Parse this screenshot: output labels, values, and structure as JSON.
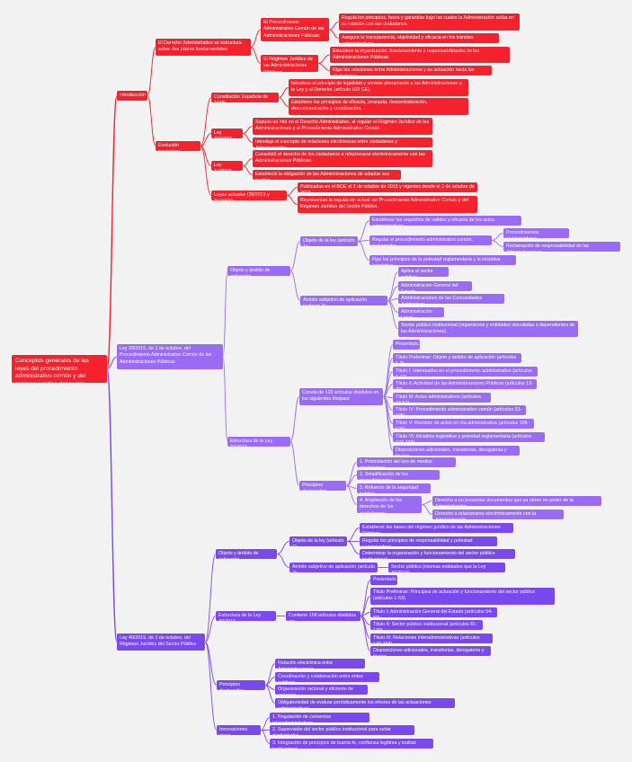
{
  "colors": {
    "root": "#f5222d",
    "branches": [
      "#f5222d",
      "#9a6cf6",
      "#7a48ef"
    ]
  },
  "tree": {
    "text": "Conceptos generales de las leyes del procedimiento administrativo común y del régimen jurídico del sector público",
    "children": [
      {
        "text": "Introducción",
        "children": [
          {
            "text": "El Derecho Administrativo se estructura sobre dos pilares fundamentales:",
            "children": [
              {
                "text": "El Procedimiento Administrativo Común de las Administraciones Públicas:",
                "children": [
                  {
                    "text": "Regula los principios, fases y garantías bajo las cuales la Administración actúa en su relación con los ciudadanos."
                  },
                  {
                    "text": "Asegura la transparencia, objetividad y eficacia en los trámites administrativos."
                  }
                ]
              },
              {
                "text": "El Régimen Jurídico de las Administraciones Públicas:",
                "children": [
                  {
                    "text": "Establece la organización, funcionamiento y responsabilidades de las Administraciones Públicas."
                  },
                  {
                    "text": "Rige las relaciones entre Administraciones y su actuación hacia los ciudadanos."
                  }
                ]
              }
            ]
          },
          {
            "text": "Evolución normativa:",
            "children": [
              {
                "text": "Constitución Española de 1978:",
                "children": [
                  {
                    "text": "Introduce el principio de legalidad y somete plenamente a las Administraciones a la Ley y al Derecho (artículo 103 CE)."
                  },
                  {
                    "text": "Establece los principios de eficacia, jerarquía, descentralización, desconcentración y coordinación."
                  }
                ]
              },
              {
                "text": "Ley 30/1992:",
                "children": [
                  {
                    "text": "Supuso un hito en el Derecho Administrativo, al regular el Régimen Jurídico de las Administraciones y el Procedimiento Administrativo Común."
                  },
                  {
                    "text": "Introdujo el concepto de relaciones electrónicas entre ciudadanos y Administración."
                  }
                ]
              },
              {
                "text": "Ley 11/2007:",
                "children": [
                  {
                    "text": "Consolidó el derecho de los ciudadanos a relacionarse electrónicamente con las Administraciones Públicas."
                  },
                  {
                    "text": "Estableció la obligación de las Administraciones de adaptar sus medios."
                  }
                ]
              },
              {
                "text": "Leyes actuales (39/2015 y 40/2015):",
                "children": [
                  {
                    "text": "Publicadas en el BOE el 2 de octubre de 2015 y vigentes desde el 2 de octubre de 2016."
                  },
                  {
                    "text": "Representan la regulación actual del Procedimiento Administrativo Común y del Régimen Jurídico del Sector Público."
                  }
                ]
              }
            ]
          }
        ]
      },
      {
        "text": "Ley 39/2015, de 1 de octubre, del Procedimiento Administrativo Común de las Administraciones Públicas",
        "children": [
          {
            "text": "Objeto y ámbito de aplicación",
            "children": [
              {
                "text": "Objeto de la ley (artículo 1):",
                "children": [
                  {
                    "text": "Establecer los requisitos de validez y eficacia de los actos administrativos."
                  },
                  {
                    "text": "Regular el procedimiento administrativo común, incluyendo:",
                    "children": [
                      {
                        "text": "Procedimientos sancionadores."
                      },
                      {
                        "text": "Reclamación de responsabilidad de las Administraciones."
                      }
                    ]
                  },
                  {
                    "text": "Fijar los principios de la potestad reglamentaria y la iniciativa legislativa."
                  }
                ]
              },
              {
                "text": "Ámbito subjetivo de aplicación (artículo 2):",
                "children": [
                  {
                    "text": "Aplica al sector público:"
                  },
                  {
                    "text": "Administración General del Estado."
                  },
                  {
                    "text": "Administraciones de las Comunidades Autónomas."
                  },
                  {
                    "text": "Administración Local."
                  },
                  {
                    "text": "Sector público institucional (organismos y entidades vinculadas o dependientes de las Administraciones)."
                  }
                ]
              }
            ]
          },
          {
            "text": "Estructura de la Ley 39/2015",
            "children": [
              {
                "text": "Consta de 133 artículos divididos en los siguientes bloques:",
                "children": [
                  {
                    "text": "Preámbulo."
                  },
                  {
                    "text": "Título Preliminar: Objeto y ámbito de aplicación (artículos 1-2)."
                  },
                  {
                    "text": "Título I: Interesados en el procedimiento administrativo (artículos 3-12)."
                  },
                  {
                    "text": "Título II: Actividad de las Administraciones Públicas (artículos 13-33)."
                  },
                  {
                    "text": "Título III: Actos administrativos (artículos 34-52)."
                  },
                  {
                    "text": "Título IV: Procedimiento administrativo común (artículos 53-105)."
                  },
                  {
                    "text": "Título V: Revisión de actos en vía administrativa (artículos 106-126)."
                  },
                  {
                    "text": "Título VI: Iniciativa legislativa y potestad reglamentaria (artículos 127-133)."
                  },
                  {
                    "text": "Disposiciones adicionales, transitorias, derogatoria y finales."
                  }
                ]
              },
              {
                "text": "Principios destacados",
                "children": [
                  {
                    "text": "1.  Potenciación del uso de medios electrónicos."
                  },
                  {
                    "text": "2.  Simplificación de los procedimientos."
                  },
                  {
                    "text": "3.  Refuerzo de la seguridad jurídica."
                  },
                  {
                    "text": "4.  Ampliación de los derechos de los ciudadanos:",
                    "children": [
                      {
                        "text": "Derecho a no presentar documentos que ya obren en poder de la Administración."
                      },
                      {
                        "text": "Derecho a relacionarse electrónicamente con la Administración."
                      }
                    ]
                  }
                ]
              }
            ]
          }
        ]
      },
      {
        "text": "Ley 40/2015, de 1 de octubre, del Régimen Jurídico del Sector Público",
        "children": [
          {
            "text": "Objeto y ámbito de aplicación",
            "children": [
              {
                "text": "Objeto de la ley (artículo 1):",
                "children": [
                  {
                    "text": "Establecer las bases del régimen jurídico de las Administraciones Públicas."
                  },
                  {
                    "text": "Regular los principios de responsabilidad y potestad sancionadora."
                  },
                  {
                    "text": "Determinar la organización y funcionamiento del sector público institucional."
                  }
                ]
              },
              {
                "text": "Ámbito subjetivo de aplicación (artículo 2):",
                "children": [
                  {
                    "text": "Sector público (mismas entidades que la Ley 39/2015)."
                  }
                ]
              }
            ]
          },
          {
            "text": "Estructura de la Ley 40/2015",
            "children": [
              {
                "text": "Contiene 158 artículos divididos en:",
                "children": [
                  {
                    "text": "Preámbulo."
                  },
                  {
                    "text": "Título Preliminar: Principios de actuación y funcionamiento del sector público (artículos 1-53)."
                  },
                  {
                    "text": "Título I: Administración General del Estado (artículos 54-80)."
                  },
                  {
                    "text": "Título II: Sector público institucional (artículos 81-139)."
                  },
                  {
                    "text": "Título III: Relaciones interadministrativas (artículos 140-158)."
                  },
                  {
                    "text": "Disposiciones adicionales, transitorias, derogatoria y finales."
                  }
                ]
              }
            ]
          },
          {
            "text": "Principios destacados",
            "children": [
              {
                "text": "Relación electrónica entre Administraciones."
              },
              {
                "text": "Coordinación y colaboración entre entes públicos."
              },
              {
                "text": "Organización racional y eficiente de recursos."
              },
              {
                "text": "Obligatoriedad de evaluar periódicamente los efectos de las actuaciones administrativas."
              }
            ]
          },
          {
            "text": "Innovaciones clave",
            "children": [
              {
                "text": "1.  Regulación de convenios interadministrativos."
              },
              {
                "text": "2.  Supervisión del sector público institucional para evitar duplicidades."
              },
              {
                "text": "3.  Integración de principios de buena fe, confianza legítima y lealtad institucional."
              }
            ]
          }
        ]
      }
    ]
  }
}
